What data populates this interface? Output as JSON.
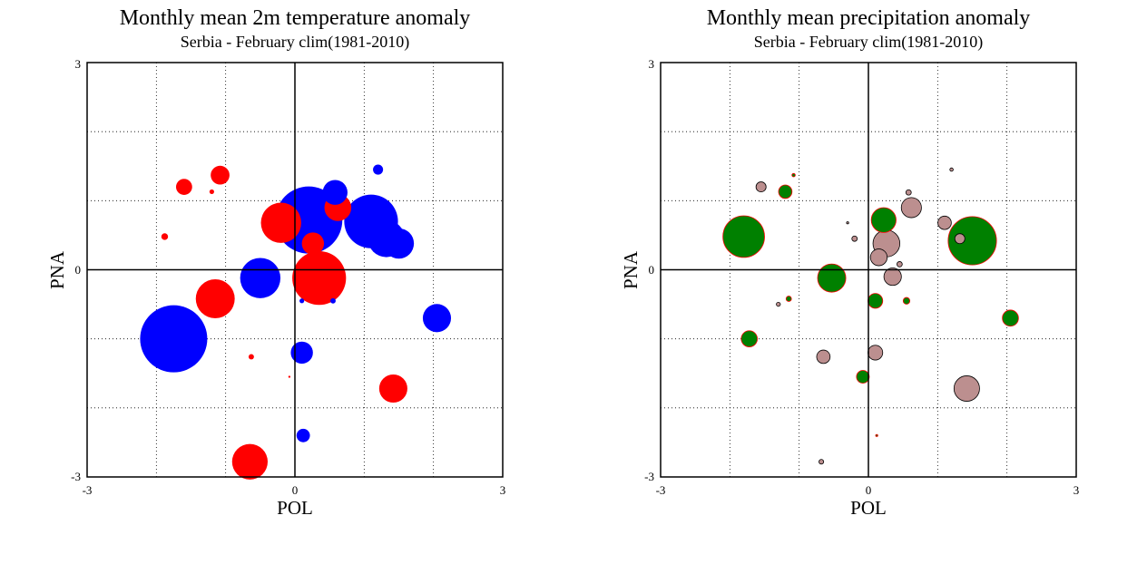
{
  "chart_data": [
    {
      "type": "scatter",
      "title": "Monthly mean 2m temperature anomaly",
      "subtitle": "Serbia - February  clim(1981-2010)",
      "xlabel": "POL",
      "ylabel": "PNA",
      "xlim": [
        -3,
        3
      ],
      "ylim": [
        -3,
        3
      ],
      "x_tick_labels": [
        "-3",
        "0",
        "3"
      ],
      "y_tick_labels": [
        "3",
        "0",
        "-3"
      ],
      "grid": true,
      "encoding": "bubble size = magnitude of anomaly; red = positive, blue = negative",
      "colors": {
        "positive": "#ff0000",
        "negative": "#0000ff"
      },
      "points": [
        {
          "x": -1.75,
          "y": -1.0,
          "size": 1.0,
          "sign": "negative"
        },
        {
          "x": -1.15,
          "y": -0.42,
          "size": 0.58,
          "sign": "positive"
        },
        {
          "x": -0.5,
          "y": -0.12,
          "size": 0.6,
          "sign": "negative"
        },
        {
          "x": -0.65,
          "y": -2.78,
          "size": 0.53,
          "sign": "positive"
        },
        {
          "x": -0.2,
          "y": 0.68,
          "size": 0.6,
          "sign": "positive"
        },
        {
          "x": 0.2,
          "y": 0.72,
          "size": 1.0,
          "sign": "negative"
        },
        {
          "x": 0.58,
          "y": 1.12,
          "size": 0.37,
          "sign": "negative"
        },
        {
          "x": 0.62,
          "y": 0.9,
          "size": 0.4,
          "sign": "positive"
        },
        {
          "x": 0.35,
          "y": -0.12,
          "size": 0.8,
          "sign": "positive"
        },
        {
          "x": 0.26,
          "y": 0.38,
          "size": 0.33,
          "sign": "positive"
        },
        {
          "x": 1.1,
          "y": 0.7,
          "size": 0.8,
          "sign": "negative"
        },
        {
          "x": 1.32,
          "y": 0.45,
          "size": 0.55,
          "sign": "negative"
        },
        {
          "x": 1.5,
          "y": 0.38,
          "size": 0.45,
          "sign": "negative"
        },
        {
          "x": 2.05,
          "y": -0.7,
          "size": 0.42,
          "sign": "negative"
        },
        {
          "x": 1.42,
          "y": -1.72,
          "size": 0.42,
          "sign": "positive"
        },
        {
          "x": 0.1,
          "y": -1.2,
          "size": 0.33,
          "sign": "negative"
        },
        {
          "x": 0.12,
          "y": -2.4,
          "size": 0.2,
          "sign": "negative"
        },
        {
          "x": -1.6,
          "y": 1.2,
          "size": 0.24,
          "sign": "positive"
        },
        {
          "x": -1.08,
          "y": 1.37,
          "size": 0.28,
          "sign": "positive"
        },
        {
          "x": -1.2,
          "y": 1.13,
          "size": 0.07,
          "sign": "positive"
        },
        {
          "x": -1.88,
          "y": 0.48,
          "size": 0.1,
          "sign": "positive"
        },
        {
          "x": 1.2,
          "y": 1.45,
          "size": 0.15,
          "sign": "negative"
        },
        {
          "x": -0.63,
          "y": -1.26,
          "size": 0.08,
          "sign": "positive"
        },
        {
          "x": 0.1,
          "y": -0.45,
          "size": 0.07,
          "sign": "negative"
        },
        {
          "x": 0.55,
          "y": -0.45,
          "size": 0.08,
          "sign": "negative"
        },
        {
          "x": -0.08,
          "y": -1.55,
          "size": 0.03,
          "sign": "positive"
        }
      ]
    },
    {
      "type": "scatter",
      "title": "Monthly mean precipitation anomaly",
      "subtitle": "Serbia - February  clim(1981-2010)",
      "xlabel": "POL",
      "ylabel": "PNA",
      "xlim": [
        -3,
        3
      ],
      "ylim": [
        -3,
        3
      ],
      "x_tick_labels": [
        "-3",
        "0",
        "3"
      ],
      "y_tick_labels": [
        "3",
        "0",
        "-3"
      ],
      "grid": true,
      "encoding": "bubble size = magnitude of anomaly; green = wet, rosy brown = dry",
      "colors": {
        "wet": "#008000",
        "wet_edge": "#ff0000",
        "dry": "#bc8f8f",
        "dry_edge": "#000000"
      },
      "points": [
        {
          "x": -1.8,
          "y": 0.48,
          "size": 0.62,
          "sign": "wet"
        },
        {
          "x": 1.5,
          "y": 0.42,
          "size": 0.72,
          "sign": "wet"
        },
        {
          "x": -0.53,
          "y": -0.12,
          "size": 0.42,
          "sign": "wet"
        },
        {
          "x": 0.22,
          "y": 0.72,
          "size": 0.37,
          "sign": "wet"
        },
        {
          "x": 2.05,
          "y": -0.7,
          "size": 0.24,
          "sign": "wet"
        },
        {
          "x": -1.72,
          "y": -1.0,
          "size": 0.24,
          "sign": "wet"
        },
        {
          "x": -1.2,
          "y": 1.13,
          "size": 0.2,
          "sign": "wet"
        },
        {
          "x": 0.1,
          "y": -0.45,
          "size": 0.22,
          "sign": "wet"
        },
        {
          "x": -0.08,
          "y": -1.55,
          "size": 0.19,
          "sign": "wet"
        },
        {
          "x": 0.55,
          "y": -0.45,
          "size": 0.1,
          "sign": "wet"
        },
        {
          "x": -1.15,
          "y": -0.42,
          "size": 0.08,
          "sign": "wet"
        },
        {
          "x": -1.08,
          "y": 1.37,
          "size": 0.05,
          "sign": "wet"
        },
        {
          "x": 0.12,
          "y": -2.4,
          "size": 0.03,
          "sign": "wet"
        },
        {
          "x": 1.42,
          "y": -1.72,
          "size": 0.38,
          "sign": "dry"
        },
        {
          "x": 0.26,
          "y": 0.38,
          "size": 0.4,
          "sign": "dry"
        },
        {
          "x": 0.62,
          "y": 0.9,
          "size": 0.3,
          "sign": "dry"
        },
        {
          "x": 0.35,
          "y": -0.1,
          "size": 0.26,
          "sign": "dry"
        },
        {
          "x": 0.15,
          "y": 0.18,
          "size": 0.25,
          "sign": "dry"
        },
        {
          "x": 0.1,
          "y": -1.2,
          "size": 0.22,
          "sign": "dry"
        },
        {
          "x": -0.65,
          "y": -1.26,
          "size": 0.2,
          "sign": "dry"
        },
        {
          "x": 1.1,
          "y": 0.68,
          "size": 0.2,
          "sign": "dry"
        },
        {
          "x": 1.32,
          "y": 0.45,
          "size": 0.15,
          "sign": "dry"
        },
        {
          "x": -1.55,
          "y": 1.2,
          "size": 0.15,
          "sign": "dry"
        },
        {
          "x": 0.58,
          "y": 1.12,
          "size": 0.08,
          "sign": "dry"
        },
        {
          "x": 0.45,
          "y": 0.08,
          "size": 0.08,
          "sign": "dry"
        },
        {
          "x": -0.2,
          "y": 0.45,
          "size": 0.08,
          "sign": "dry"
        },
        {
          "x": -1.3,
          "y": -0.5,
          "size": 0.06,
          "sign": "dry"
        },
        {
          "x": -0.68,
          "y": -2.78,
          "size": 0.07,
          "sign": "dry"
        },
        {
          "x": 1.2,
          "y": 1.45,
          "size": 0.05,
          "sign": "dry"
        },
        {
          "x": -0.3,
          "y": 0.68,
          "size": 0.02,
          "sign": "dry"
        }
      ]
    }
  ]
}
